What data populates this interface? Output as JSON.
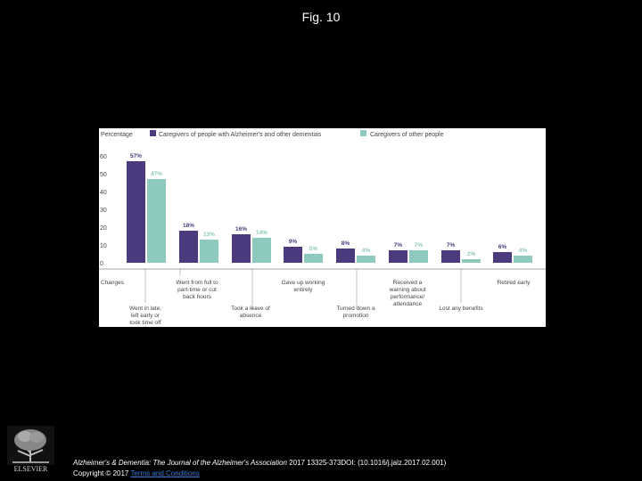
{
  "figure": {
    "title": "Fig. 10"
  },
  "colors": {
    "series_1": "#4b3b7e",
    "series_2": "#8ec9bd",
    "background": "#000000"
  },
  "chart_data": {
    "type": "bar",
    "ylabel": "Percentage",
    "ylim": [
      0,
      60
    ],
    "y_ticks": [
      "60",
      "50",
      "40",
      "30",
      "20",
      "10",
      "0"
    ],
    "categories_top": [
      "Changes",
      "Went from full to part-time or cut back hours",
      "Gave up working entirely",
      "Received a warning about performance/ attendance",
      "Retired early"
    ],
    "categories": [
      "Went in late, left early or took time off",
      "Went from full to part-time or cut back hours",
      "Took a leave of absence",
      "Gave up working entirely",
      "Turned down a promotion",
      "Received a warning about performance/ attendance",
      "Lost any benefits",
      "Retired early"
    ],
    "series": [
      {
        "name": "Caregivers of people with Alzheimer's and other dementias",
        "values": [
          57,
          18,
          16,
          9,
          8,
          7,
          7,
          6
        ],
        "labels": [
          "57%",
          "18%",
          "16%",
          "9%",
          "8%",
          "7%",
          "7%",
          "6%"
        ]
      },
      {
        "name": "Caregivers of other people",
        "values": [
          47,
          13,
          14,
          5,
          4,
          7,
          2,
          4
        ],
        "labels": [
          "47%",
          "13%",
          "14%",
          "5%",
          "4%",
          "7%",
          "2%",
          "4%"
        ]
      }
    ],
    "axis_labels": [
      "Changes",
      "Went from full to part-time or cut back hours",
      "Gave up working entirely",
      "Received a warning about performance/ attendance",
      "Retired early",
      "Went in late, left early or took time off",
      "Took a leave of absence",
      "Turned down a promotion",
      "Lost any benefits"
    ]
  },
  "footer": {
    "journal": "Alzheimer's & Dementia: The Journal of the Alzheimer's Association",
    "citation_rest": " 2017 13325-373DOI: (10.1016/j.jalz.2017.02.001)",
    "copyright": "Copyright © 2017 ",
    "link_text": "Terms and Conditions",
    "publisher": "ELSEVIER"
  }
}
